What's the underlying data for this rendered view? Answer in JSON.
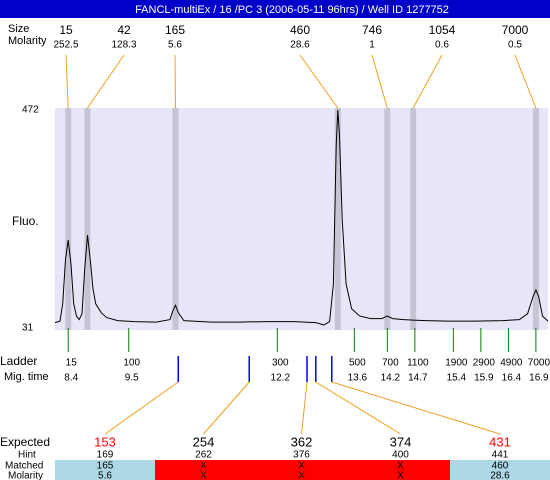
{
  "header": {
    "title": "FANCL-multiEx / 16 /PC 3 (2006-05-11 96hrs) / Well ID 1277752",
    "size_label": "Size",
    "molarity_label": "Molarity",
    "color": "#0000c8"
  },
  "chart_data": {
    "type": "line",
    "ylabel": "Fluo.",
    "color": "#000000",
    "background": "#e6e6f8",
    "x": [
      8.16,
      8.25,
      8.3,
      8.35,
      8.4,
      8.45,
      8.5,
      8.55,
      8.6,
      8.65,
      8.7,
      8.75,
      8.8,
      8.85,
      8.9,
      9.0,
      9.1,
      9.3,
      9.6,
      10.0,
      10.25,
      10.3,
      10.35,
      10.4,
      10.5,
      11.0,
      11.5,
      12.0,
      12.5,
      12.9,
      13.05,
      13.15,
      13.22,
      13.27,
      13.3,
      13.33,
      13.38,
      13.45,
      13.55,
      13.7,
      13.9,
      14.1,
      14.2,
      14.3,
      14.5,
      14.67,
      14.9,
      15.3,
      15.8,
      16.3,
      16.6,
      16.75,
      16.85,
      16.9,
      16.95,
      17.02,
      17.12
    ],
    "values": [
      42,
      45,
      80,
      170,
      209,
      160,
      80,
      55,
      48,
      60,
      150,
      219,
      170,
      110,
      80,
      62,
      52,
      46,
      44,
      43,
      48,
      65,
      77,
      62,
      46,
      43,
      43,
      44,
      44,
      42,
      37,
      44,
      120,
      400,
      472,
      420,
      250,
      120,
      70,
      55,
      50,
      50,
      55,
      50,
      48,
      47,
      46,
      45,
      45,
      46,
      48,
      60,
      95,
      108,
      95,
      55,
      45
    ],
    "xlim": [
      8.16,
      17.12
    ],
    "ylim": [
      31,
      472
    ],
    "yticks": [
      31,
      472
    ]
  },
  "peaks": {
    "band_color": "#c4c4d4",
    "line_color": "#f0a020",
    "items": [
      {
        "size": 15,
        "molarity": 252.5,
        "mig_time": 8.4
      },
      {
        "size": 42,
        "molarity": 128.3,
        "mig_time": 8.75
      },
      {
        "size": 165,
        "molarity": 5.6,
        "mig_time": 10.35
      },
      {
        "size": 460,
        "molarity": 28.6,
        "mig_time": 13.3
      },
      {
        "size": 746,
        "molarity": 1,
        "mig_time": 14.2
      },
      {
        "size": 1054,
        "molarity": 0.6,
        "mig_time": 14.67
      },
      {
        "size": 7000,
        "molarity": 0.5,
        "mig_time": 16.9
      }
    ]
  },
  "ladder": {
    "label": "Ladder",
    "time_label": "Mig. time",
    "color": "#008000",
    "sizes": [
      15,
      100,
      300,
      500,
      700,
      1100,
      1900,
      2900,
      4900,
      7000
    ],
    "mig_times": [
      8.4,
      9.5,
      12.2,
      13.6,
      14.2,
      14.7,
      15.4,
      15.9,
      16.4,
      16.9
    ]
  },
  "expected": {
    "expected_label": "Expected",
    "hint_label": "Hint",
    "matched_label": "Matched",
    "molarity_label": "Molarity",
    "marker_color": "#0000ff",
    "items": [
      {
        "expected": 153,
        "hint": 169,
        "matched": 165,
        "molarity": 5.6,
        "mig_time": 10.4,
        "text_color": "#ff0000",
        "cell_color": "#add8e6"
      },
      {
        "expected": 254,
        "hint": 262,
        "matched": "X",
        "molarity": "X",
        "mig_time": 11.69,
        "text_color": "#000000",
        "cell_color": "#ff0000"
      },
      {
        "expected": 362,
        "hint": 376,
        "matched": "X",
        "molarity": "X",
        "mig_time": 12.74,
        "text_color": "#000000",
        "cell_color": "#ff0000"
      },
      {
        "expected": 374,
        "hint": 400,
        "matched": "X",
        "molarity": "X",
        "mig_time": 12.9,
        "text_color": "#000000",
        "cell_color": "#ff0000"
      },
      {
        "expected": 431,
        "hint": 441,
        "matched": 460,
        "molarity": 28.6,
        "mig_time": 13.19,
        "text_color": "#ff0000",
        "cell_color": "#add8e6"
      }
    ]
  }
}
